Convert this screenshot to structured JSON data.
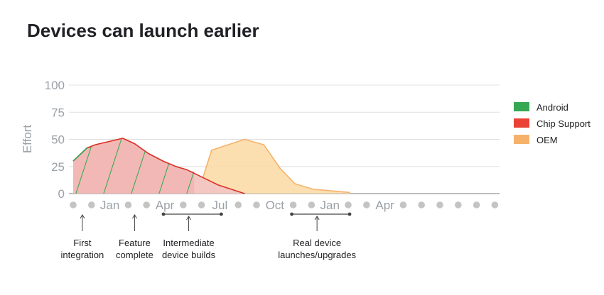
{
  "chart_data": {
    "type": "area",
    "title": "Devices can launch earlier",
    "ylabel": "Effort",
    "xlabel": "",
    "ylim": [
      0,
      100
    ],
    "yticks": [
      0,
      25,
      50,
      75,
      100
    ],
    "x_slots": 24,
    "x_tick_labels": [
      {
        "slot": 2,
        "label": "Jan"
      },
      {
        "slot": 5,
        "label": "Apr"
      },
      {
        "slot": 8,
        "label": "Jul"
      },
      {
        "slot": 11,
        "label": "Oct"
      },
      {
        "slot": 14,
        "label": "Jan"
      },
      {
        "slot": 17,
        "label": "Apr"
      }
    ],
    "grid": true,
    "legend_position": "right",
    "series": [
      {
        "name": "Android",
        "color": "#34a853",
        "points": [
          [
            0,
            30
          ],
          [
            0.75,
            42
          ],
          [
            1.2,
            45
          ],
          [
            2.7,
            51
          ],
          [
            3.35,
            46
          ],
          [
            4.1,
            37
          ],
          [
            4.9,
            30
          ],
          [
            5.6,
            25
          ],
          [
            6.2,
            22
          ],
          [
            6.6,
            20
          ]
        ]
      },
      {
        "name": "Chip Support",
        "color": "#ea4335",
        "points": [
          [
            0,
            30
          ],
          [
            0.75,
            42
          ],
          [
            1.2,
            45
          ],
          [
            2.7,
            51
          ],
          [
            3.35,
            46
          ],
          [
            4.1,
            37
          ],
          [
            4.9,
            30
          ],
          [
            5.6,
            25
          ],
          [
            6.2,
            22
          ],
          [
            7.9,
            8
          ],
          [
            9.35,
            0
          ]
        ]
      },
      {
        "name": "OEM",
        "color": "#f9ab00",
        "points": [
          [
            6.8,
            0
          ],
          [
            7.55,
            40
          ],
          [
            9.35,
            50
          ],
          [
            10.4,
            45
          ],
          [
            11.3,
            23
          ],
          [
            12.1,
            9
          ],
          [
            13.1,
            4
          ],
          [
            15.1,
            1
          ]
        ]
      }
    ],
    "annotations": [
      {
        "text": [
          "First",
          "integration"
        ],
        "slot": 0.5
      },
      {
        "text": [
          "Feature",
          "complete"
        ],
        "slot": 3.35
      },
      {
        "text": [
          "Intermediate",
          "device builds"
        ],
        "slot": 6.3,
        "range": [
          5,
          8
        ]
      },
      {
        "text": [
          "Real device",
          "launches/upgrades"
        ],
        "slot": 13.3,
        "range": [
          12,
          15
        ]
      }
    ]
  }
}
